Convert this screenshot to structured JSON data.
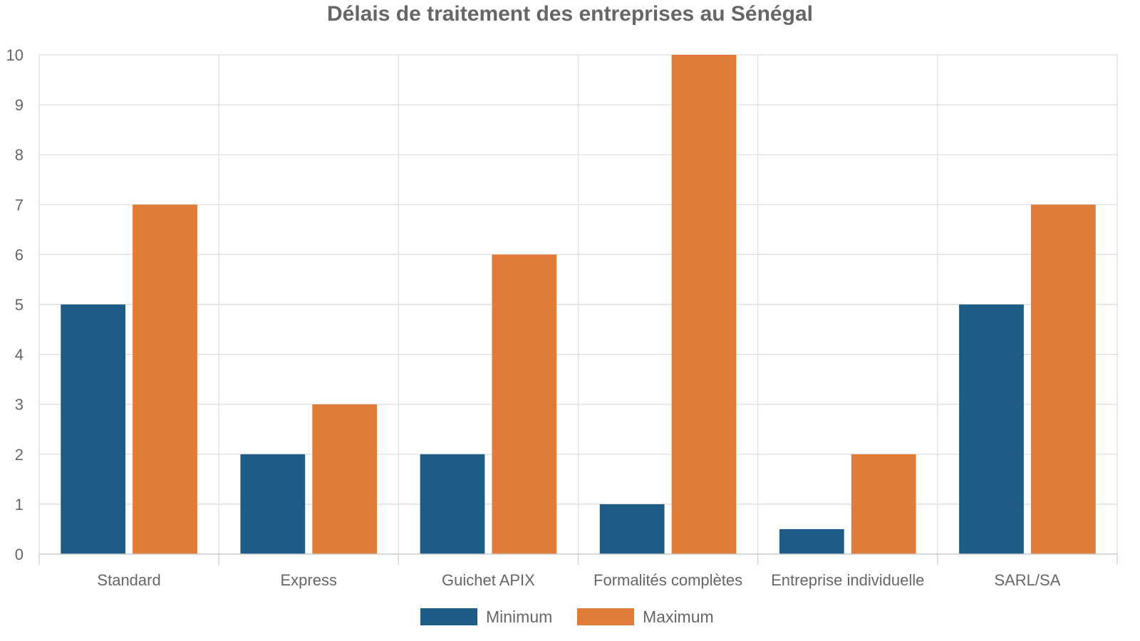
{
  "chart_data": {
    "type": "bar",
    "title": "Délais de traitement des entreprises au Sénégal",
    "xlabel": "",
    "ylabel": "",
    "categories": [
      "Standard",
      "Express",
      "Guichet APIX",
      "Formalités complètes",
      "Entreprise individuelle",
      "SARL/SA"
    ],
    "series": [
      {
        "name": "Minimum",
        "color": "#1f5c85",
        "values": [
          5,
          2,
          2,
          1,
          0.5,
          5
        ]
      },
      {
        "name": "Maximum",
        "color": "#e07b39",
        "values": [
          7,
          3,
          6,
          10,
          2,
          7
        ]
      }
    ],
    "ylim": [
      0,
      10
    ],
    "yticks": [
      "0",
      "1",
      "2",
      "3",
      "4",
      "5",
      "6",
      "7",
      "8",
      "9",
      "10"
    ],
    "grid": true,
    "legend_position": "bottom"
  }
}
